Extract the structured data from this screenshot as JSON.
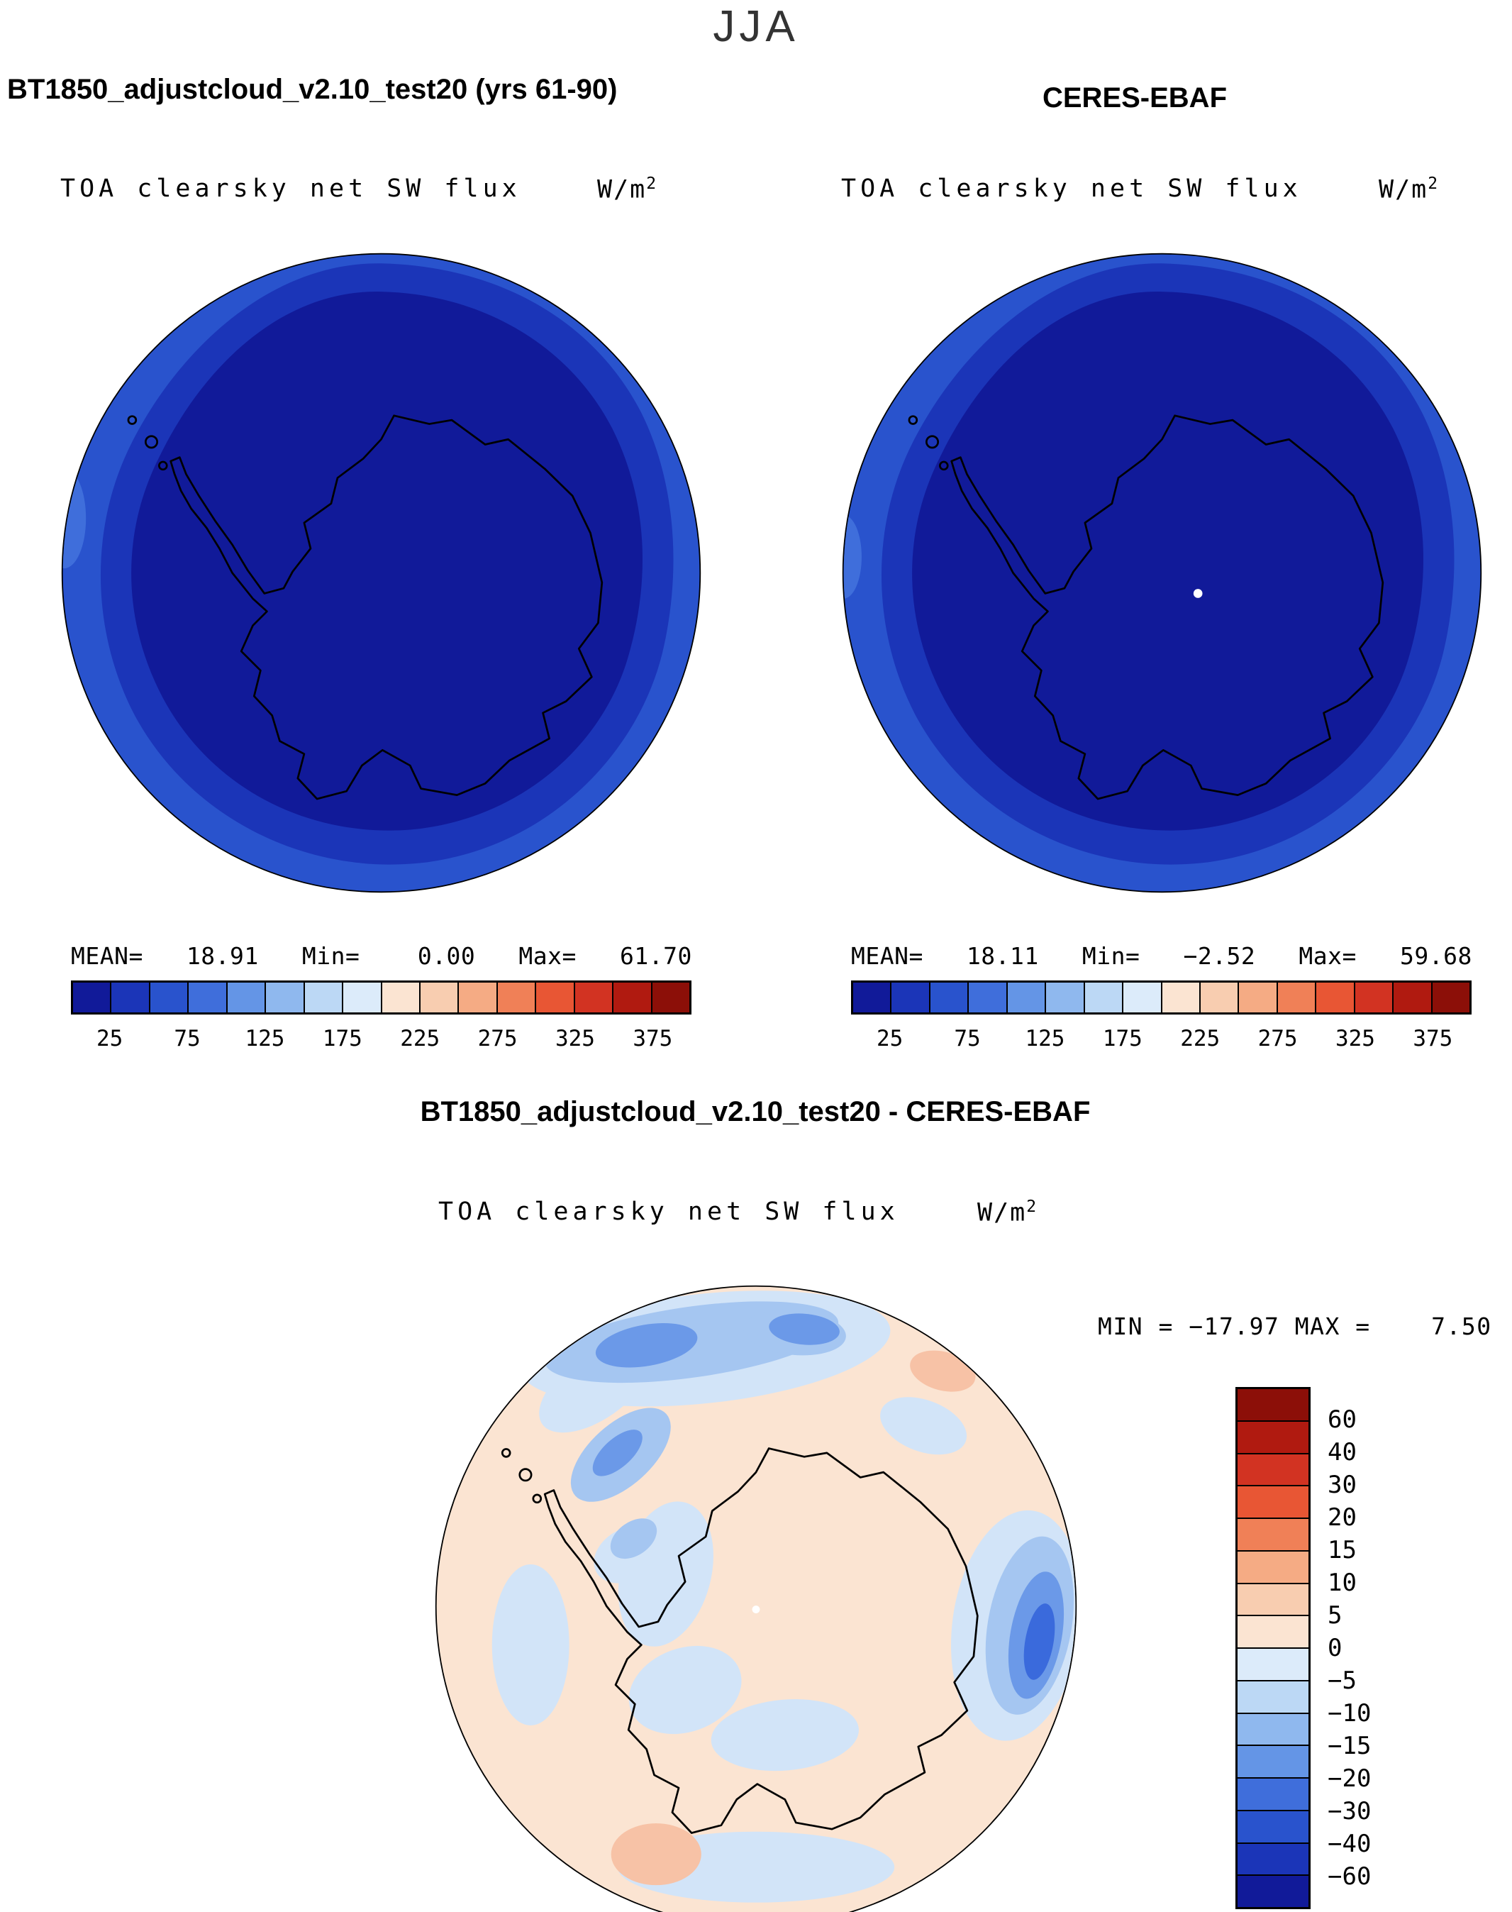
{
  "header": {
    "season": "JJA"
  },
  "panels": {
    "model": {
      "title": "BT1850_adjustcloud_v2.10_test20 (yrs 61-90)",
      "subtitle": "TOA clearsky net SW flux",
      "units_base": "W/m",
      "units_exp": "2",
      "stats": "MEAN=   18.91   Min=    0.00   Max=   61.70"
    },
    "obs": {
      "title": "CERES-EBAF",
      "subtitle": "TOA clearsky net SW flux",
      "units_base": "W/m",
      "units_exp": "2",
      "stats": "MEAN=   18.11   Min=   −2.52   Max=   59.68"
    }
  },
  "diff": {
    "title": "BT1850_adjustcloud_v2.10_test20 - CERES-EBAF",
    "subtitle": "TOA clearsky net SW flux",
    "units_base": "W/m",
    "units_exp": "2",
    "minmax": "MIN = −17.97 MAX =    7.50"
  },
  "palette": {
    "map_low": "#111a99",
    "map_mid": "#1b35b8",
    "map_high": "#2953cd",
    "map_edge": "#3f6edb",
    "diff_base": "#fbe4d2",
    "diff_light": "#d2e4f8",
    "diff_med": "#a5c6f1",
    "diff_strong": "#6b99e8",
    "diff_dark": "#3a6adc",
    "diff_pink": "#f7c2a6",
    "coast": "#000000",
    "pole_dot": "#ffffff"
  },
  "colorbars": {
    "flux": {
      "colors": [
        "#111a99",
        "#1b35b8",
        "#2953cd",
        "#3f6edb",
        "#6495e6",
        "#8fb8ee",
        "#bcd8f5",
        "#dcebfa",
        "#fbe4d2",
        "#f8cdb0",
        "#f5ab84",
        "#f08057",
        "#e85634",
        "#d23322",
        "#b01a10",
        "#8c0f08"
      ],
      "ticks": [
        "25",
        "75",
        "125",
        "175",
        "225",
        "275",
        "325",
        "375"
      ],
      "tick_positions": [
        1,
        3,
        5,
        7,
        9,
        11,
        13,
        15
      ]
    },
    "diff": {
      "colors": [
        "#8c0f08",
        "#b01a10",
        "#d23322",
        "#e85634",
        "#f08057",
        "#f5ab84",
        "#f8cdb0",
        "#fbe4d2",
        "#dcebfa",
        "#bcd8f5",
        "#8fb8ee",
        "#6495e6",
        "#3f6edb",
        "#2953cd",
        "#1b35b8",
        "#111a99"
      ],
      "ticks": [
        "60",
        "40",
        "30",
        "20",
        "15",
        "10",
        "5",
        "0",
        "−5",
        "−10",
        "−15",
        "−20",
        "−30",
        "−40",
        "−60"
      ],
      "tick_positions": [
        1,
        2,
        3,
        4,
        5,
        6,
        7,
        8,
        9,
        10,
        11,
        12,
        13,
        14,
        15
      ]
    }
  },
  "chart_data": [
    {
      "type": "heatmap",
      "panel": "top-left",
      "title": "BT1850_adjustcloud_v2.10_test20 (yrs 61-90)",
      "season": "JJA",
      "variable": "TOA clearsky net SW flux",
      "units": "W/m2",
      "projection": "south polar stereographic",
      "stats": {
        "mean": 18.91,
        "min": 0.0,
        "max": 61.7
      },
      "colorbar": {
        "orientation": "horizontal",
        "tick_labels": [
          25,
          75,
          125,
          175,
          225,
          275,
          325,
          375
        ],
        "level_min": 0,
        "level_max": 400,
        "level_step": 25,
        "palette": "blue-to-red"
      },
      "description": "Nearly entire south-polar disk in lowest blue bins (0-50 W/m2), brighter blue ring at the outer (equatorward) edge"
    },
    {
      "type": "heatmap",
      "panel": "top-right",
      "title": "CERES-EBAF",
      "season": "JJA",
      "variable": "TOA clearsky net SW flux",
      "units": "W/m2",
      "projection": "south polar stereographic",
      "stats": {
        "mean": 18.11,
        "min": -2.52,
        "max": 59.68
      },
      "colorbar": {
        "orientation": "horizontal",
        "tick_labels": [
          25,
          75,
          125,
          175,
          225,
          275,
          325,
          375
        ],
        "level_min": 0,
        "level_max": 400,
        "level_step": 25,
        "palette": "blue-to-red"
      },
      "description": "Same pattern as model panel; white missing-data dot at the pole"
    },
    {
      "type": "heatmap",
      "panel": "bottom-difference",
      "title": "BT1850_adjustcloud_v2.10_test20 - CERES-EBAF",
      "season": "JJA",
      "variable": "TOA clearsky net SW flux",
      "units": "W/m2",
      "projection": "south polar stereographic",
      "stats": {
        "min": -17.97,
        "max": 7.5
      },
      "colorbar": {
        "orientation": "vertical",
        "levels": [
          -60,
          -40,
          -30,
          -20,
          -15,
          -10,
          -5,
          0,
          5,
          10,
          15,
          20,
          30,
          40,
          60
        ],
        "palette": "red-top-to-blue-bottom"
      },
      "description": "Mostly 0 to +5 (pale peach) with negative blue bands near 60S, strongest negative patch (-15 to -20) at right edge, small positive pink patches bottom-left and top-right"
    }
  ]
}
